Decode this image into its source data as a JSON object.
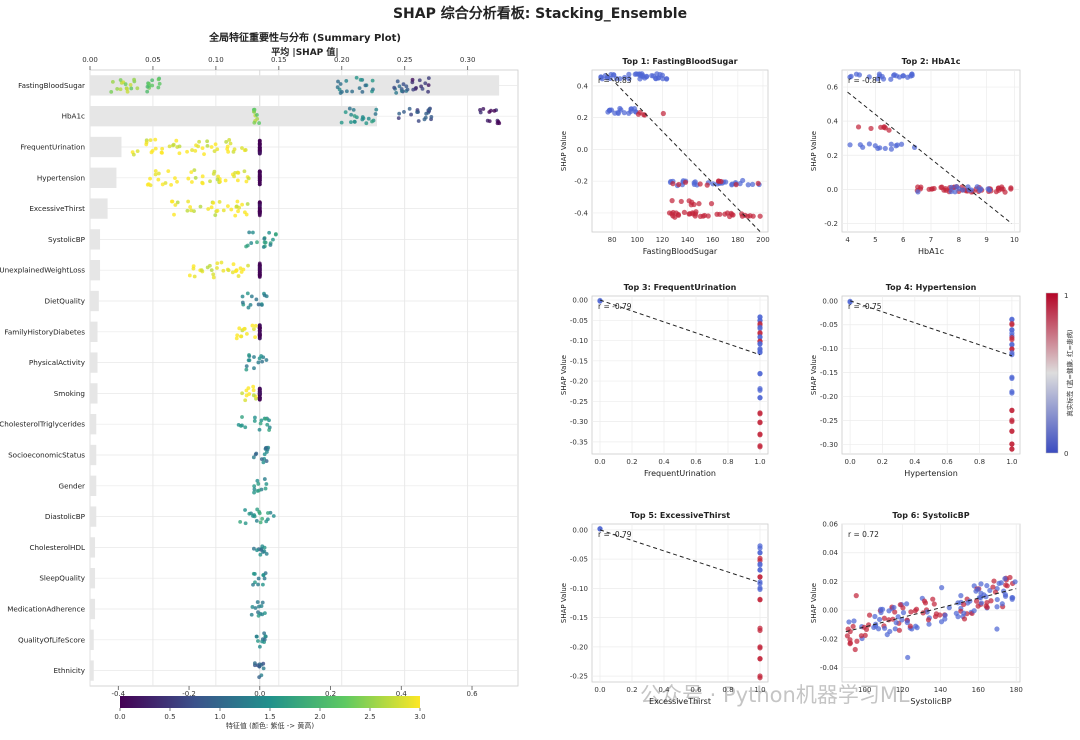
{
  "title": "SHAP 综合分析看板: Stacking_Ensemble",
  "summary": {
    "title": "全局特征重要性与分布 (Summary Plot)",
    "top_axis_label": "平均 |SHAP 值|",
    "top_ticks": [
      "0.00",
      "0.05",
      "0.10",
      "0.15",
      "0.20",
      "0.25",
      "0.30"
    ],
    "bottom_ticks": [
      "-0.4",
      "-0.2",
      "0.0",
      "0.2",
      "0.4",
      "0.6"
    ],
    "colorbar_label": "特征值 (颜色: 紫低 -> 黄高)",
    "colorbar_ticks": [
      "0.0",
      "0.5",
      "1.0",
      "1.5",
      "2.0",
      "2.5",
      "3.0"
    ]
  },
  "side_colorbar": {
    "label": "真实标签 (蓝=健康, 红=患病)",
    "tick_top": "1",
    "tick_bottom": "0"
  },
  "watermark": "公众号 · Python机器学习ML",
  "chart_data": [
    {
      "type": "bar",
      "title": "全局特征重要性与分布 (Summary Plot)",
      "xlabel": "平均 |SHAP 值|",
      "xlim": [
        0,
        0.34
      ],
      "categories": [
        "FastingBloodSugar",
        "HbA1c",
        "FrequentUrination",
        "Hypertension",
        "ExcessiveThirst",
        "SystolicBP",
        "UnexplainedWeightLoss",
        "DietQuality",
        "FamilyHistoryDiabetes",
        "PhysicalActivity",
        "Smoking",
        "CholesterolTriglycerides",
        "SocioeconomicStatus",
        "Gender",
        "DiastolicBP",
        "CholesterolHDL",
        "SleepQuality",
        "MedicationAdherence",
        "QualityOfLifeScore",
        "Ethnicity"
      ],
      "values": [
        0.325,
        0.228,
        0.025,
        0.021,
        0.014,
        0.008,
        0.008,
        0.007,
        0.006,
        0.006,
        0.006,
        0.005,
        0.005,
        0.005,
        0.005,
        0.004,
        0.004,
        0.004,
        0.003,
        0.003
      ]
    },
    {
      "type": "scatter",
      "title": "全局特征重要性与分布 (Summary Plot)",
      "xlabel": "",
      "xlim": [
        -0.48,
        0.73
      ],
      "colorbar": {
        "label": "特征值 (颜色: 紫低 -> 黄高)",
        "range": [
          0,
          3.0
        ],
        "colormap": "viridis"
      },
      "series": [
        {
          "name": "FastingBloodSugar",
          "clusters": [
            {
              "from": -0.42,
              "to": -0.34,
              "feat": 2.5
            },
            {
              "from": -0.33,
              "to": -0.28,
              "feat": 2.1
            },
            {
              "from": 0.22,
              "to": 0.33,
              "feat": 1.3
            },
            {
              "from": 0.37,
              "to": 0.42,
              "feat": 0.9
            },
            {
              "from": 0.43,
              "to": 0.48,
              "feat": 0.4
            }
          ]
        },
        {
          "name": "HbA1c",
          "clusters": [
            {
              "from": -0.02,
              "to": 0.01,
              "feat": 2.4
            },
            {
              "from": 0.22,
              "to": 0.33,
              "feat": 1.4
            },
            {
              "from": 0.38,
              "to": 0.49,
              "feat": 0.8
            },
            {
              "from": 0.62,
              "to": 0.68,
              "feat": 0.2
            }
          ]
        },
        {
          "name": "FrequentUrination",
          "clusters": [
            {
              "from": -0.36,
              "to": -0.03,
              "feat": 2.95
            },
            {
              "from": 0.0,
              "to": 0.0,
              "feat": 0.0
            }
          ]
        },
        {
          "name": "Hypertension",
          "clusters": [
            {
              "from": -0.32,
              "to": -0.03,
              "feat": 2.95
            },
            {
              "from": 0.0,
              "to": 0.0,
              "feat": 0.0
            }
          ]
        },
        {
          "name": "ExcessiveThirst",
          "clusters": [
            {
              "from": -0.25,
              "to": -0.03,
              "feat": 2.95
            },
            {
              "from": 0.0,
              "to": 0.0,
              "feat": 0.0
            }
          ]
        },
        {
          "name": "SystolicBP",
          "clusters": [
            {
              "from": -0.04,
              "to": 0.06,
              "feat": 1.5
            }
          ]
        },
        {
          "name": "UnexplainedWeightLoss",
          "clusters": [
            {
              "from": -0.21,
              "to": -0.03,
              "feat": 2.95
            },
            {
              "from": 0.0,
              "to": 0.0,
              "feat": 0.0
            }
          ]
        },
        {
          "name": "DietQuality",
          "clusters": [
            {
              "from": -0.05,
              "to": 0.02,
              "feat": 1.3
            }
          ]
        },
        {
          "name": "FamilyHistoryDiabetes",
          "clusters": [
            {
              "from": -0.07,
              "to": -0.01,
              "feat": 2.9
            },
            {
              "from": 0.0,
              "to": 0.0,
              "feat": 0.0
            }
          ]
        },
        {
          "name": "PhysicalActivity",
          "clusters": [
            {
              "from": -0.05,
              "to": 0.02,
              "feat": 1.4
            }
          ]
        },
        {
          "name": "Smoking",
          "clusters": [
            {
              "from": -0.05,
              "to": -0.01,
              "feat": 2.9
            },
            {
              "from": 0.0,
              "to": 0.0,
              "feat": 0.0
            }
          ]
        },
        {
          "name": "CholesterolTriglycerides",
          "clusters": [
            {
              "from": -0.06,
              "to": 0.03,
              "feat": 1.5
            }
          ]
        },
        {
          "name": "SocioeconomicStatus",
          "clusters": [
            {
              "from": -0.04,
              "to": 0.03,
              "feat": 1.2
            }
          ]
        },
        {
          "name": "Gender",
          "clusters": [
            {
              "from": -0.02,
              "to": 0.02,
              "feat": 1.5
            }
          ]
        },
        {
          "name": "DiastolicBP",
          "clusters": [
            {
              "from": -0.06,
              "to": 0.05,
              "feat": 1.6
            }
          ]
        },
        {
          "name": "CholesterolHDL",
          "clusters": [
            {
              "from": -0.02,
              "to": 0.02,
              "feat": 1.3
            }
          ]
        },
        {
          "name": "SleepQuality",
          "clusters": [
            {
              "from": -0.02,
              "to": 0.02,
              "feat": 1.4
            }
          ]
        },
        {
          "name": "MedicationAdherence",
          "clusters": [
            {
              "from": -0.03,
              "to": 0.02,
              "feat": 1.4
            }
          ]
        },
        {
          "name": "QualityOfLifeScore",
          "clusters": [
            {
              "from": -0.02,
              "to": 0.02,
              "feat": 1.3
            }
          ]
        },
        {
          "name": "Ethnicity",
          "clusters": [
            {
              "from": -0.02,
              "to": 0.02,
              "feat": 1.0
            }
          ]
        }
      ]
    },
    {
      "type": "scatter",
      "title": "Top 1: FastingBloodSugar",
      "xlabel": "FastingBloodSugar",
      "ylabel": "SHAP Value",
      "xlim": [
        64,
        204
      ],
      "ylim": [
        -0.52,
        0.5
      ],
      "xticks": [
        "80",
        "100",
        "120",
        "140",
        "160",
        "180",
        "200"
      ],
      "yticks": [
        "-0.4",
        "-0.2",
        "0.0",
        "0.2",
        "0.4"
      ],
      "annotation": "r = -0.83",
      "trend": [
        [
          75,
          0.48
        ],
        [
          198,
          -0.52
        ]
      ],
      "groups": [
        {
          "x0": 70,
          "x1": 125,
          "y": 0.46,
          "label": 0,
          "n": 40
        },
        {
          "x0": 74,
          "x1": 100,
          "y": 0.24,
          "label": 0,
          "n": 18
        },
        {
          "x0": 100,
          "x1": 125,
          "y": 0.23,
          "label": 1,
          "n": 5
        },
        {
          "x0": 125,
          "x1": 198,
          "y": -0.21,
          "label": 0,
          "n": 30
        },
        {
          "x0": 125,
          "x1": 198,
          "y": -0.21,
          "label": 1,
          "n": 10
        },
        {
          "x0": 125,
          "x1": 160,
          "y": -0.34,
          "label": 1,
          "n": 8
        },
        {
          "x0": 125,
          "x1": 198,
          "y": -0.41,
          "label": 1,
          "n": 35
        }
      ]
    },
    {
      "type": "scatter",
      "title": "Top 2: HbA1c",
      "xlabel": "HbA1c",
      "ylabel": "SHAP Value",
      "xlim": [
        3.8,
        10.2
      ],
      "ylim": [
        -0.25,
        0.7
      ],
      "xticks": [
        "4",
        "5",
        "6",
        "7",
        "8",
        "9",
        "10"
      ],
      "yticks": [
        "-0.2",
        "0.0",
        "0.2",
        "0.4",
        "0.6"
      ],
      "annotation": "r = -0.81",
      "trend": [
        [
          4.0,
          0.57
        ],
        [
          9.9,
          -0.2
        ]
      ],
      "groups": [
        {
          "x0": 4.0,
          "x1": 6.5,
          "y": 0.66,
          "label": 0,
          "n": 22
        },
        {
          "x0": 4.0,
          "x1": 6.5,
          "y": 0.25,
          "label": 0,
          "n": 14
        },
        {
          "x0": 4.2,
          "x1": 5.5,
          "y": 0.36,
          "label": 1,
          "n": 7
        },
        {
          "x0": 6.5,
          "x1": 9.9,
          "y": 0.0,
          "label": 1,
          "n": 45
        },
        {
          "x0": 6.5,
          "x1": 9.9,
          "y": 0.0,
          "label": 0,
          "n": 15
        }
      ]
    },
    {
      "type": "scatter",
      "title": "Top 3: FrequentUrination",
      "xlabel": "FrequentUrination",
      "ylabel": "SHAP Value",
      "xlim": [
        -0.05,
        1.05
      ],
      "ylim": [
        -0.38,
        0.01
      ],
      "xticks": [
        "0.0",
        "0.2",
        "0.4",
        "0.6",
        "0.8",
        "1.0"
      ],
      "yticks": [
        "0.00",
        "-0.05",
        "-0.10",
        "-0.15",
        "-0.20",
        "-0.25",
        "-0.30",
        "-0.35"
      ],
      "annotation": "r = -0.79",
      "trend": [
        [
          0.0,
          0.0
        ],
        [
          1.0,
          -0.135
        ]
      ],
      "points": [
        [
          0,
          0,
          0
        ],
        [
          1,
          -0.04,
          0
        ],
        [
          1,
          -0.05,
          0
        ],
        [
          1,
          -0.06,
          1
        ],
        [
          1,
          -0.07,
          0
        ],
        [
          1,
          -0.08,
          1
        ],
        [
          1,
          -0.09,
          0
        ],
        [
          1,
          -0.1,
          1
        ],
        [
          1,
          -0.11,
          0
        ],
        [
          1,
          -0.12,
          0
        ],
        [
          1,
          -0.13,
          0
        ],
        [
          1,
          -0.18,
          0
        ],
        [
          1,
          -0.22,
          0
        ],
        [
          1,
          -0.24,
          0
        ],
        [
          1,
          -0.28,
          1
        ],
        [
          1,
          -0.3,
          1
        ],
        [
          1,
          -0.33,
          1
        ],
        [
          1,
          -0.36,
          1
        ]
      ]
    },
    {
      "type": "scatter",
      "title": "Top 4: Hypertension",
      "xlabel": "Hypertension",
      "ylabel": "SHAP Value",
      "xlim": [
        -0.05,
        1.05
      ],
      "ylim": [
        -0.32,
        0.01
      ],
      "xticks": [
        "0.0",
        "0.2",
        "0.4",
        "0.6",
        "0.8",
        "1.0"
      ],
      "yticks": [
        "0.00",
        "-0.05",
        "-0.10",
        "-0.15",
        "-0.20",
        "-0.25",
        "-0.30"
      ],
      "annotation": "r = -0.75",
      "trend": [
        [
          0.0,
          0.0
        ],
        [
          1.0,
          -0.115
        ]
      ],
      "points": [
        [
          0,
          0,
          0
        ],
        [
          1,
          -0.04,
          0
        ],
        [
          1,
          -0.05,
          1
        ],
        [
          1,
          -0.06,
          0
        ],
        [
          1,
          -0.07,
          0
        ],
        [
          1,
          -0.08,
          1
        ],
        [
          1,
          -0.09,
          0
        ],
        [
          1,
          -0.1,
          1
        ],
        [
          1,
          -0.11,
          0
        ],
        [
          1,
          -0.16,
          0
        ],
        [
          1,
          -0.19,
          0
        ],
        [
          1,
          -0.23,
          1
        ],
        [
          1,
          -0.25,
          1
        ],
        [
          1,
          -0.27,
          1
        ],
        [
          1,
          -0.3,
          1
        ],
        [
          1,
          -0.31,
          1
        ]
      ]
    },
    {
      "type": "scatter",
      "title": "Top 5: ExcessiveThirst",
      "xlabel": "ExcessiveThirst",
      "ylabel": "SHAP Value",
      "xlim": [
        -0.05,
        1.05
      ],
      "ylim": [
        -0.26,
        0.01
      ],
      "xticks": [
        "0.0",
        "0.2",
        "0.4",
        "0.6",
        "0.8",
        "1.0"
      ],
      "yticks": [
        "0.00",
        "-0.05",
        "-0.10",
        "-0.15",
        "-0.20",
        "-0.25"
      ],
      "annotation": "r = -0.79",
      "trend": [
        [
          0.0,
          0.0
        ],
        [
          1.0,
          -0.09
        ]
      ],
      "points": [
        [
          0,
          0,
          0
        ],
        [
          1,
          -0.03,
          0
        ],
        [
          1,
          -0.04,
          0
        ],
        [
          1,
          -0.05,
          1
        ],
        [
          1,
          -0.06,
          0
        ],
        [
          1,
          -0.07,
          0
        ],
        [
          1,
          -0.08,
          1
        ],
        [
          1,
          -0.09,
          0
        ],
        [
          1,
          -0.1,
          0
        ],
        [
          1,
          -0.12,
          1
        ],
        [
          1,
          -0.17,
          1
        ],
        [
          1,
          -0.2,
          1
        ],
        [
          1,
          -0.22,
          1
        ],
        [
          1,
          -0.25,
          1
        ]
      ]
    },
    {
      "type": "scatter",
      "title": "Top 6: SystolicBP",
      "xlabel": "SystolicBP",
      "ylabel": "SHAP Value",
      "xlim": [
        88,
        182
      ],
      "ylim": [
        -0.05,
        0.06
      ],
      "xticks": [
        "100",
        "120",
        "140",
        "160",
        "180"
      ],
      "yticks": [
        "-0.04",
        "-0.02",
        "0.00",
        "0.02",
        "0.04",
        "0.06"
      ],
      "annotation": "r = 0.72",
      "trend": [
        [
          90,
          -0.015
        ],
        [
          180,
          0.015
        ]
      ],
      "slope": 0.00033
    }
  ]
}
